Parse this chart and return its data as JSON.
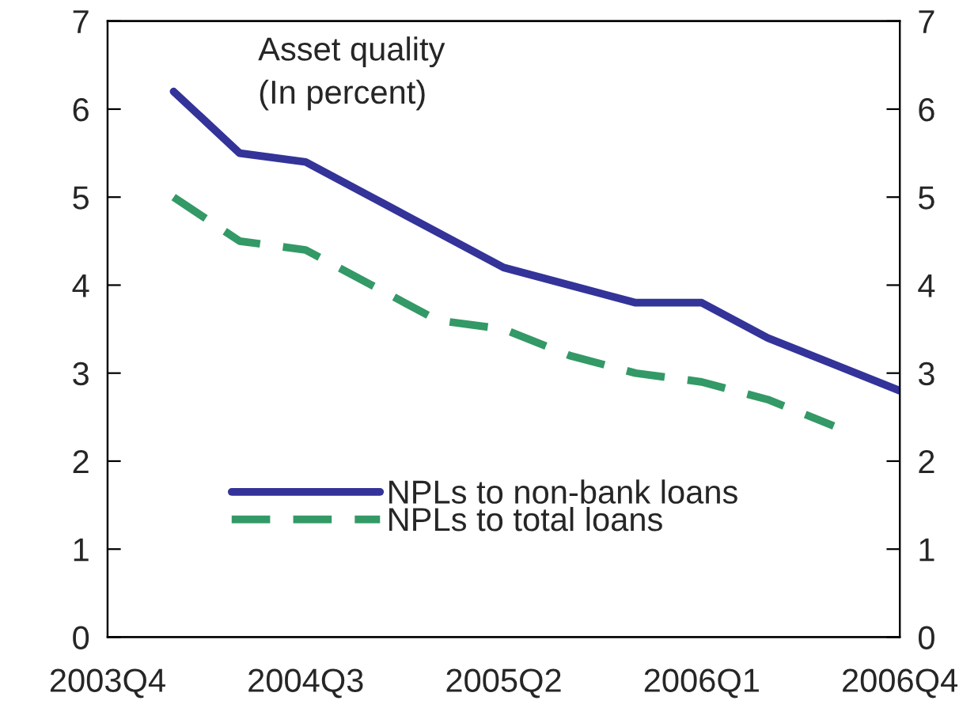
{
  "chart_data": {
    "type": "line",
    "title": "Asset quality",
    "subtitle": "(In percent)",
    "categories": [
      "2003Q4",
      null,
      null,
      "2004Q3",
      null,
      null,
      "2005Q2",
      null,
      null,
      "2006Q1",
      null,
      null,
      "2006Q4"
    ],
    "ylim": [
      0,
      7
    ],
    "yticks": [
      0,
      1,
      2,
      3,
      4,
      5,
      6,
      7
    ],
    "y2lim": [
      0,
      7
    ],
    "y2ticks": [
      0,
      1,
      2,
      3,
      4,
      5,
      6,
      7
    ],
    "grid": false,
    "legend": "bottom left",
    "marker": "none",
    "series": [
      {
        "name": "NPLs to non-bank loans",
        "color": "#333399",
        "line_style": "solid",
        "values": [
          null,
          6.2,
          5.5,
          5.4,
          5.0,
          4.6,
          4.2,
          4.0,
          3.8,
          3.8,
          3.4,
          3.1,
          2.8
        ]
      },
      {
        "name": "NPLs to total loans",
        "color": "#339966",
        "line_style": "dashed",
        "values": [
          null,
          5.0,
          4.5,
          4.4,
          4.0,
          3.6,
          3.5,
          3.2,
          3.0,
          2.9,
          2.7,
          2.4,
          null
        ]
      }
    ]
  }
}
